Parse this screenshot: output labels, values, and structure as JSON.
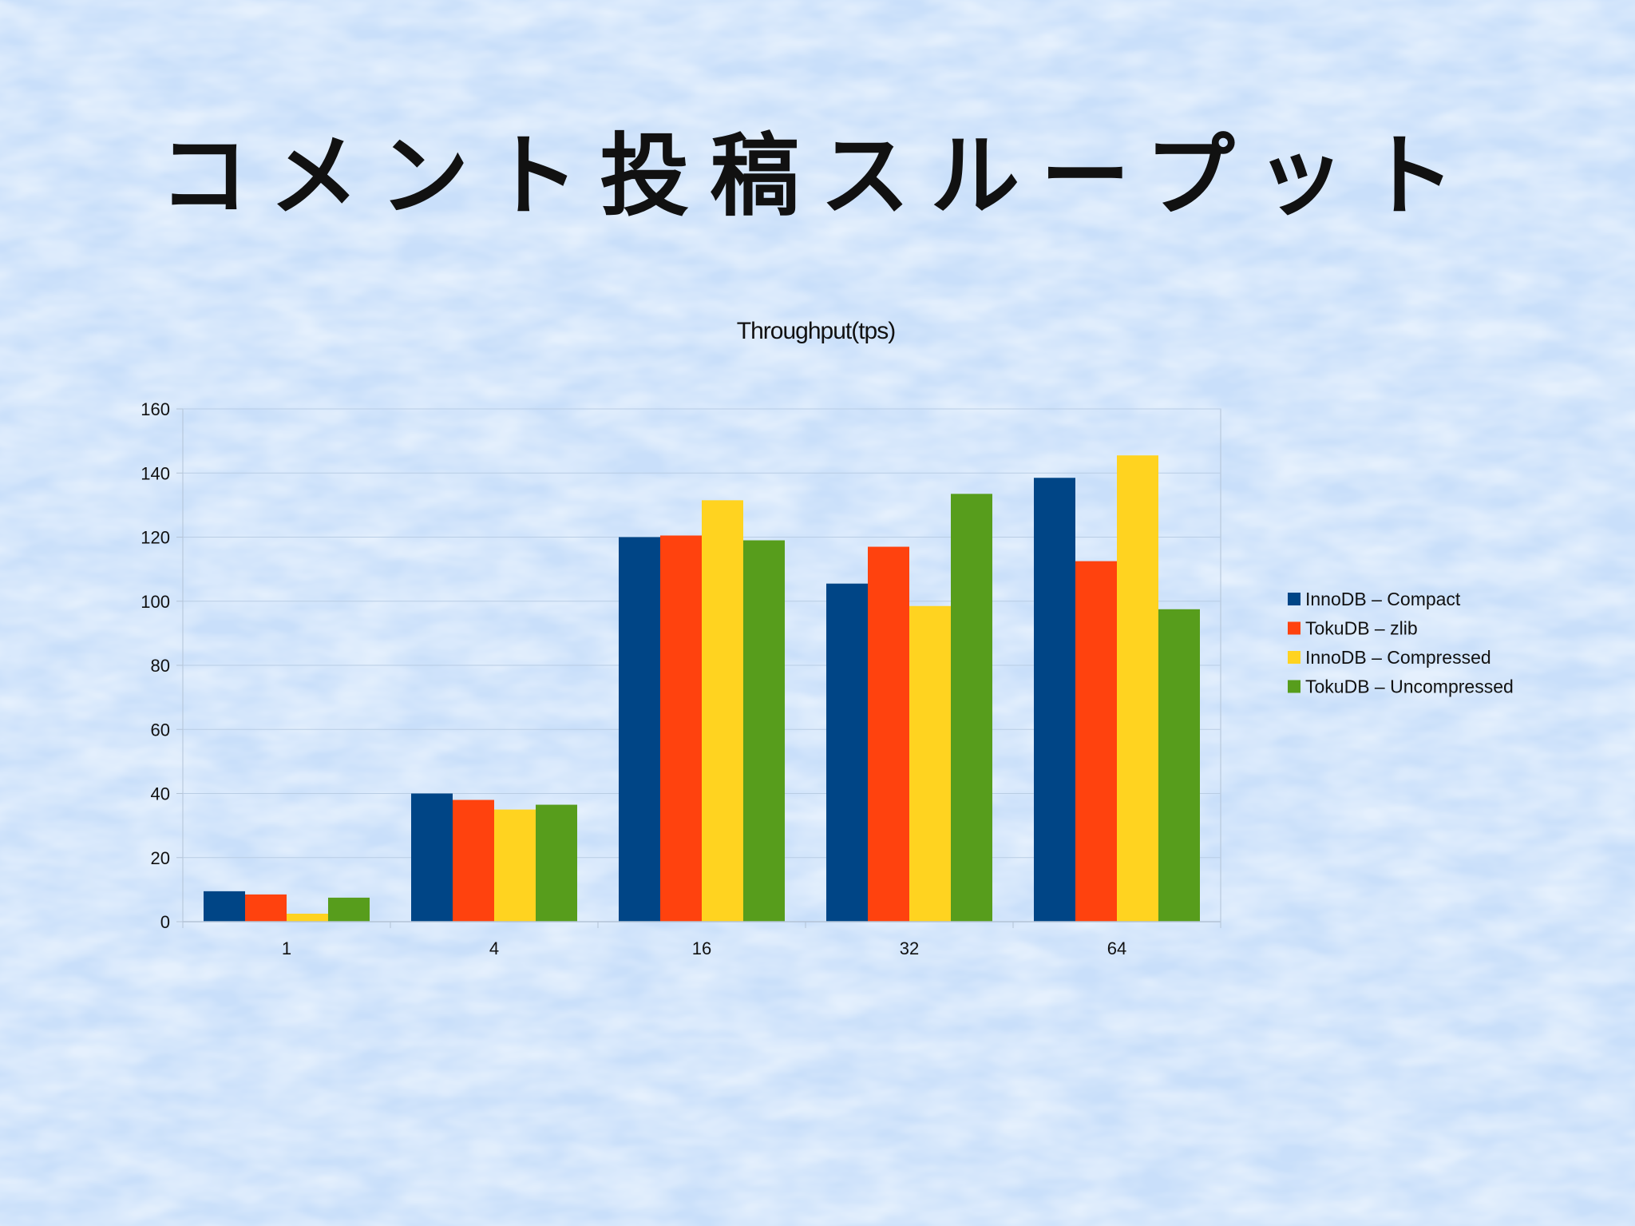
{
  "slide": {
    "title": "コメント投稿スループット"
  },
  "colors": {
    "background": "#cfe3fb",
    "grid": "#b9cde4",
    "axis": "#b3c3d6",
    "text": "#111111"
  },
  "chart_data": {
    "type": "bar",
    "title": "Throughput(tps)",
    "xlabel": "",
    "ylabel": "",
    "categories": [
      "1",
      "4",
      "16",
      "32",
      "64"
    ],
    "ylim": [
      0,
      160
    ],
    "yticks": [
      0,
      20,
      40,
      60,
      80,
      100,
      120,
      140,
      160
    ],
    "grid": true,
    "legend": "right",
    "series": [
      {
        "name": "InnoDB – Compact",
        "color": "#004586",
        "values": [
          9.5,
          40,
          120,
          105.5,
          138.5
        ]
      },
      {
        "name": "TokuDB – zlib",
        "color": "#ff420e",
        "values": [
          8.5,
          38,
          120.5,
          117,
          112.5
        ]
      },
      {
        "name": "InnoDB – Compressed",
        "color": "#ffd320",
        "values": [
          2.5,
          35,
          131.5,
          98.5,
          145.5
        ]
      },
      {
        "name": "TokuDB – Uncompressed",
        "color": "#579d1c",
        "values": [
          7.5,
          36.5,
          119,
          133.5,
          97.5
        ]
      }
    ]
  }
}
